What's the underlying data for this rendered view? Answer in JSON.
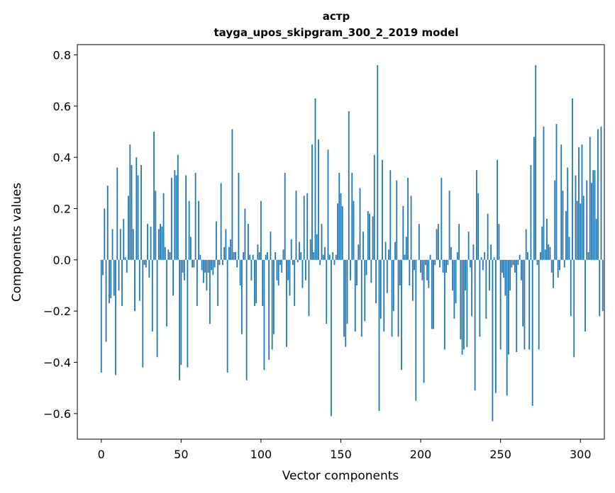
{
  "chart_data": {
    "type": "bar",
    "title": "астр",
    "subtitle": "tayga_upos_skipgram_300_2_2019 model",
    "xlabel": "Vector components",
    "ylabel": "Components values",
    "xlim": [
      -15,
      315
    ],
    "ylim": [
      -0.7,
      0.84
    ],
    "xticks": [
      0,
      50,
      100,
      150,
      200,
      250,
      300
    ],
    "yticks": [
      -0.6,
      -0.4,
      -0.2,
      0.0,
      0.2,
      0.4,
      0.6,
      0.8
    ],
    "xtick_labels": [
      "0",
      "50",
      "100",
      "150",
      "200",
      "250",
      "300"
    ],
    "ytick_labels": [
      "−0.6",
      "−0.4",
      "−0.2",
      "0.0",
      "0.2",
      "0.4",
      "0.6",
      "0.8"
    ],
    "bar_color": "#1f77b4",
    "values": [
      -0.44,
      -0.06,
      0.2,
      -0.32,
      0.29,
      -0.17,
      -0.15,
      0.12,
      -0.14,
      -0.45,
      0.36,
      -0.12,
      0.12,
      -0.18,
      0.16,
      0.01,
      -0.05,
      0.25,
      0.45,
      0.37,
      0.12,
      -0.2,
      0.4,
      0.33,
      -0.16,
      0.37,
      -0.42,
      -0.02,
      -0.03,
      0.14,
      -0.07,
      0.13,
      -0.28,
      0.5,
      0.27,
      -0.38,
      0.12,
      0.14,
      0.13,
      0.26,
      0.05,
      -0.26,
      0.04,
      0.03,
      0.32,
      -0.14,
      0.35,
      0.33,
      0.41,
      -0.47,
      -0.41,
      -0.05,
      -0.08,
      0.33,
      -0.42,
      0.23,
      0.09,
      -0.03,
      -0.03,
      0.34,
      -0.18,
      0.23,
      0.02,
      -0.04,
      -0.09,
      -0.05,
      -0.12,
      -0.05,
      -0.25,
      -0.04,
      -0.06,
      -0.03,
      0.15,
      -0.18,
      -0.02,
      0.3,
      -0.02,
      0.05,
      0.12,
      -0.44,
      0.05,
      0.08,
      0.51,
      0.03,
      0.03,
      -0.03,
      0.34,
      -0.1,
      -0.29,
      0.03,
      0.2,
      -0.47,
      0.14,
      0.02,
      -0.08,
      0.02,
      -0.18,
      -0.17,
      0.06,
      0.03,
      0.23,
      -0.18,
      -0.43,
      0.02,
      0.03,
      -0.39,
      0.11,
      -0.35,
      -0.29,
      0.03,
      -0.08,
      -0.1,
      -0.02,
      -0.05,
      0.04,
      0.34,
      -0.34,
      -0.08,
      -0.14,
      0.08,
      -0.02,
      -0.18,
      0.27,
      -0.01,
      0.07,
      0.03,
      -0.11,
      0.25,
      -0.08,
      0.26,
      -0.22,
      0.08,
      0.45,
      0.03,
      0.63,
      0.1,
      0.47,
      -0.02,
      0.14,
      0.02,
      0.05,
      -0.25,
      0.43,
      0.02,
      -0.61,
      0.03,
      -0.02,
      0.02,
      0.22,
      0.34,
      0.26,
      0.21,
      -0.3,
      -0.34,
      -0.25,
      0.58,
      -0.08,
      0.34,
      0.23,
      -0.28,
      -0.1,
      0.06,
      0.28,
      -0.3,
      0.11,
      -0.24,
      -0.06,
      0.19,
      0.18,
      -0.09,
      0.17,
      0.41,
      -0.17,
      0.76,
      -0.59,
      -0.23,
      0.39,
      -0.28,
      0.07,
      -0.13,
      0.04,
      0.35,
      -0.3,
      -0.2,
      0.07,
      0.31,
      -0.3,
      -0.1,
      -0.43,
      0.21,
      0.02,
      0.09,
      0.32,
      -0.1,
      0.25,
      -0.16,
      -0.04,
      -0.55,
      0.0,
      0.14,
      -0.05,
      -0.08,
      -0.48,
      -0.02,
      -0.08,
      -0.11,
      0.02,
      -0.27,
      -0.27,
      -0.02,
      0.12,
      0.14,
      -0.03,
      0.32,
      -0.05,
      -0.35,
      -0.05,
      -0.02,
      0.27,
      0.05,
      -0.12,
      -0.23,
      -0.17,
      0.03,
      0.14,
      -0.31,
      -0.37,
      -0.35,
      -0.12,
      -0.34,
      0.11,
      -0.03,
      -0.22,
      0.06,
      -0.51,
      0.35,
      0.26,
      -0.3,
      0.01,
      -0.04,
      0.03,
      -0.23,
      0.18,
      -0.12,
      0.06,
      -0.63,
      0.01,
      -0.52,
      0.39,
      0.14,
      -0.35,
      -0.05,
      -0.07,
      -0.14,
      -0.53,
      -0.37,
      -0.12,
      -0.03,
      -0.02,
      -0.05,
      -0.36,
      -0.02,
      0.02,
      -0.08,
      -0.26,
      -0.35,
      0.12,
      0.03,
      -0.35,
      0.37,
      -0.57,
      0.48,
      0.76,
      -0.02,
      -0.35,
      0.03,
      0.13,
      0.52,
      0.04,
      0.16,
      0.06,
      0.05,
      -0.05,
      -0.11,
      0.31,
      0.53,
      -0.07,
      -0.04,
      0.45,
      0.27,
      -0.03,
      0.19,
      0.36,
      0.09,
      -0.22,
      0.63,
      -0.38,
      0.33,
      0.23,
      0.44,
      0.22,
      0.45,
      0.25,
      -0.28,
      0.31,
      0.03,
      0.48,
      0.3,
      0.35,
      0.35,
      0.16,
      0.51,
      -0.22,
      0.52,
      -0.2
    ]
  }
}
